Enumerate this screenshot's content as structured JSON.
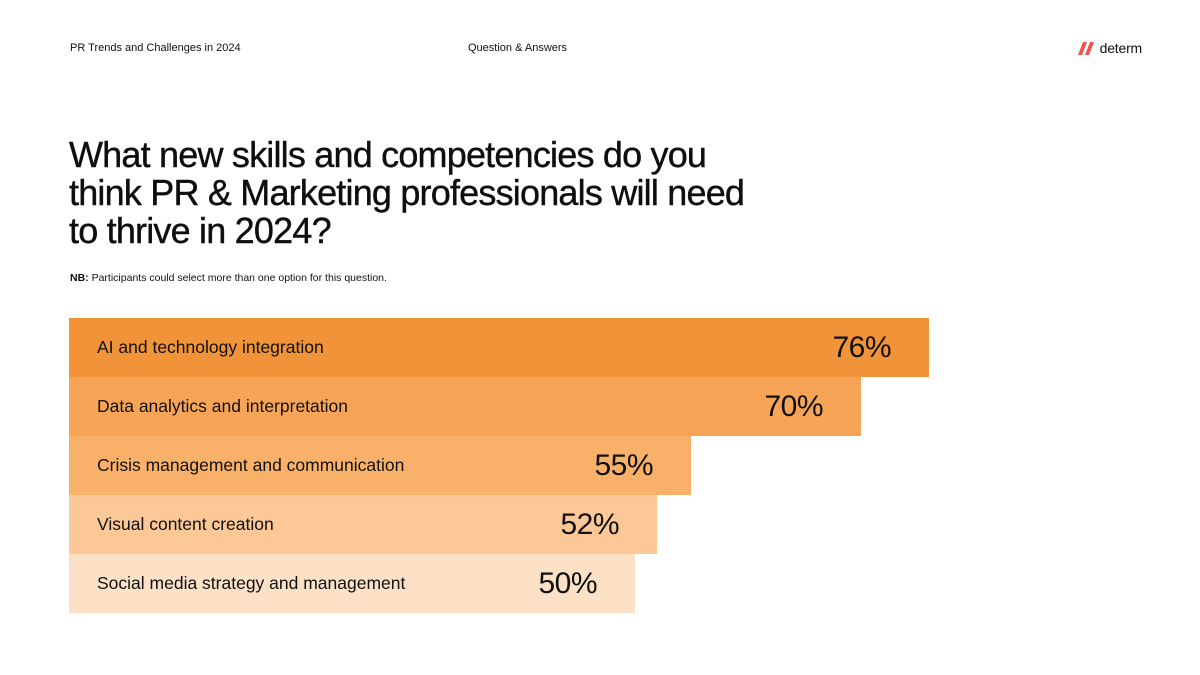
{
  "header": {
    "report_title": "PR Trends and Challenges in 2024",
    "section": "Question & Answers",
    "brand": "determ"
  },
  "question": "What new skills and competencies do you think PR & Marketing professionals will need to thrive in 2024?",
  "note": {
    "label": "NB:",
    "text": "Participants could select more than one option for this question."
  },
  "icons": {
    "brand_logo": "determ-slash-logo-icon"
  },
  "colors": {
    "brand": "#f0524a",
    "bars": [
      "#f19338",
      "#f8a456",
      "#f9b068",
      "#fcc898",
      "#fde1c7"
    ]
  },
  "chart_data": {
    "type": "bar",
    "orientation": "horizontal",
    "categories": [
      "AI and technology integration",
      "Data analytics and interpretation",
      "Crisis management and communication",
      "Visual content creation",
      "Social media strategy and management"
    ],
    "values": [
      76,
      70,
      55,
      52,
      50
    ],
    "value_labels": [
      "76%",
      "70%",
      "55%",
      "52%",
      "50%"
    ],
    "unit": "%",
    "title": "What new skills and competencies do you think PR & Marketing professionals will need to thrive in 2024?",
    "xlabel": "",
    "ylabel": "",
    "grid": false,
    "legend": "none"
  }
}
